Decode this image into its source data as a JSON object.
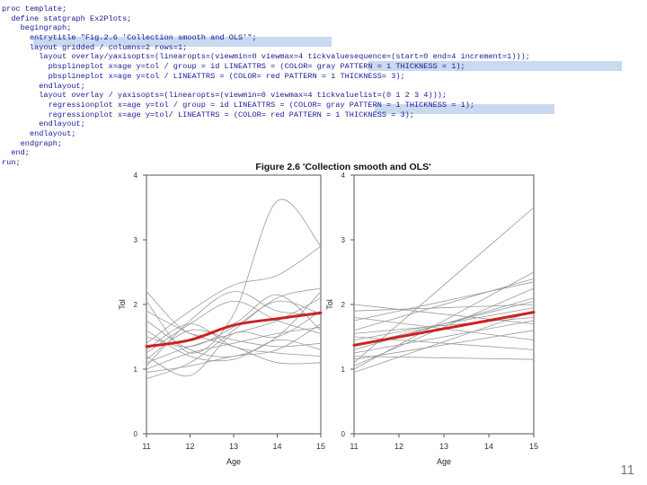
{
  "code_lines": [
    "proc template;",
    "  define statgraph Ex2Plots;",
    "    begingraph;",
    "      entrytitle \"Fig.2.6 'Collection smooth and OLS'\";",
    "      layout gridded / columns=2 rows=1;",
    "        layout overlay/yaxisopts=(linearopts=(viewmin=0 viewmax=4 tickvaluesequence=(start=0 end=4 increment=1)));",
    "          pbsplineplot x=age y=tol / group = id LINEATTRS = (COLOR= gray PATTERN = 1 THICKNESS = 1);",
    "          pbsplineplot x=age y=tol / LINEATTRS = (COLOR= red PATTERN = 1 THICKNESS= 3);",
    "        endlayout;",
    "        layout overlay / yaxisopts=(linearopts=(viewmin=0 viewmax=4 tickvaluelist=(0 1 2 3 4)));",
    "          regressionplot x=age y=tol / group = id LINEATTRS = (COLOR= gray PATTERN = 1 THICKNESS = 1);",
    "          regressionplot x=age y=tol/ LINEATTRS = (COLOR= red PATTERN = 1 THICKNESS = 3);",
    "        endlayout;",
    "      endlayout;",
    "    endgraph;",
    "  end;",
    "run;"
  ],
  "figure_title": "Figure 2.6 'Collection smooth and OLS'",
  "slide_number": "11",
  "colors": {
    "individual": "#9a9a9a",
    "average": "#cc2222",
    "code": "#1a1a9a",
    "highlight": "#c9d9ef"
  },
  "chart_data": [
    {
      "type": "line",
      "title": "",
      "xlabel": "Age",
      "ylabel": "Tol",
      "xlim": [
        11,
        15
      ],
      "ylim": [
        0,
        4
      ],
      "xticks": [
        11,
        12,
        13,
        14,
        15
      ],
      "yticks": [
        0,
        1,
        2,
        3,
        4
      ],
      "x": [
        11,
        12,
        13,
        14,
        15
      ],
      "series": [
        {
          "kind": "average",
          "values": [
            1.35,
            1.45,
            1.68,
            1.78,
            1.87
          ]
        },
        {
          "kind": "individual",
          "values": [
            2.05,
            1.25,
            1.85,
            3.6,
            2.9
          ]
        },
        {
          "kind": "individual",
          "values": [
            1.4,
            1.9,
            2.3,
            2.45,
            2.9
          ]
        },
        {
          "kind": "individual",
          "values": [
            2.2,
            1.55,
            1.7,
            2.15,
            1.6
          ]
        },
        {
          "kind": "individual",
          "values": [
            1.05,
            1.75,
            2.2,
            1.9,
            1.85
          ]
        },
        {
          "kind": "individual",
          "values": [
            1.1,
            1.35,
            1.55,
            1.75,
            2.1
          ]
        },
        {
          "kind": "individual",
          "values": [
            1.2,
            0.9,
            1.55,
            1.5,
            1.9
          ]
        },
        {
          "kind": "individual",
          "values": [
            1.3,
            1.7,
            1.35,
            1.25,
            1.2
          ]
        },
        {
          "kind": "individual",
          "values": [
            1.0,
            1.25,
            1.4,
            1.55,
            1.65
          ]
        },
        {
          "kind": "individual",
          "values": [
            0.95,
            1.05,
            1.2,
            1.3,
            1.7
          ]
        },
        {
          "kind": "individual",
          "values": [
            1.25,
            1.7,
            2.05,
            1.75,
            1.55
          ]
        },
        {
          "kind": "individual",
          "values": [
            1.75,
            1.3,
            1.2,
            1.5,
            2.2
          ]
        },
        {
          "kind": "individual",
          "values": [
            1.5,
            1.35,
            1.65,
            2.05,
            1.85
          ]
        },
        {
          "kind": "individual",
          "values": [
            1.15,
            1.6,
            1.45,
            1.35,
            1.4
          ]
        },
        {
          "kind": "individual",
          "values": [
            1.6,
            1.2,
            1.15,
            1.45,
            1.3
          ]
        },
        {
          "kind": "individual",
          "values": [
            0.85,
            1.1,
            1.6,
            2.1,
            2.25
          ]
        },
        {
          "kind": "individual",
          "values": [
            1.9,
            1.55,
            1.35,
            1.1,
            1.1
          ]
        }
      ]
    },
    {
      "type": "line",
      "title": "",
      "xlabel": "Age",
      "ylabel": "Tol",
      "xlim": [
        11,
        15
      ],
      "ylim": [
        0,
        4
      ],
      "xticks": [
        11,
        12,
        13,
        14,
        15
      ],
      "yticks": [
        0,
        1,
        2,
        3,
        4
      ],
      "x": [
        11,
        15
      ],
      "series": [
        {
          "kind": "average",
          "values": [
            1.37,
            1.88
          ]
        },
        {
          "kind": "individual",
          "values": [
            1.1,
            3.5
          ]
        },
        {
          "kind": "individual",
          "values": [
            1.0,
            2.5
          ]
        },
        {
          "kind": "individual",
          "values": [
            1.6,
            2.4
          ]
        },
        {
          "kind": "individual",
          "values": [
            1.05,
            2.25
          ]
        },
        {
          "kind": "individual",
          "values": [
            1.9,
            2.0
          ]
        },
        {
          "kind": "individual",
          "values": [
            1.5,
            1.3
          ]
        },
        {
          "kind": "individual",
          "values": [
            1.2,
            1.15
          ]
        },
        {
          "kind": "individual",
          "values": [
            1.25,
            1.75
          ]
        },
        {
          "kind": "individual",
          "values": [
            1.3,
            2.1
          ]
        },
        {
          "kind": "individual",
          "values": [
            1.75,
            2.35
          ]
        },
        {
          "kind": "individual",
          "values": [
            2.0,
            1.7
          ]
        },
        {
          "kind": "individual",
          "values": [
            1.45,
            1.95
          ]
        },
        {
          "kind": "individual",
          "values": [
            0.95,
            1.9
          ]
        },
        {
          "kind": "individual",
          "values": [
            1.8,
            1.45
          ]
        },
        {
          "kind": "individual",
          "values": [
            1.15,
            1.6
          ]
        },
        {
          "kind": "individual",
          "values": [
            1.55,
            1.8
          ]
        },
        {
          "kind": "individual",
          "values": [
            1.35,
            2.05
          ]
        }
      ]
    }
  ]
}
